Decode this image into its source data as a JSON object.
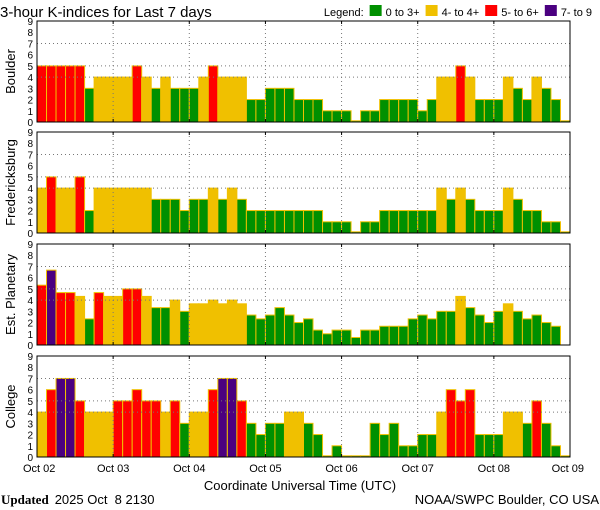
{
  "chart_data": {
    "type": "bar",
    "title": "3-hour K-indices for Last 7 days",
    "legend": {
      "label": "Legend:",
      "placement": "top-right",
      "entries": [
        {
          "label": "0 to 3+",
          "color": "#009000"
        },
        {
          "label": "4- to 4+",
          "color": "#f0c000"
        },
        {
          "label": "5- to 6+",
          "color": "#ff0000"
        },
        {
          "label": "7- to 9",
          "color": "#4b0080"
        }
      ]
    },
    "xlabel": "Coordinate Universal Time (UTC)",
    "x_ticks": [
      "Oct 02",
      "Oct 03",
      "Oct 04",
      "Oct 05",
      "Oct 06",
      "Oct 07",
      "Oct 08",
      "Oct 09"
    ],
    "y_ticks": [
      "0",
      "1",
      "2",
      "3",
      "4",
      "5",
      "6",
      "7",
      "8",
      "9"
    ],
    "ylim": [
      0,
      9
    ],
    "bars_per_day": 8,
    "grid": true,
    "panels": [
      {
        "name": "Boulder",
        "values": [
          5,
          5,
          5,
          5,
          5,
          3,
          4,
          4,
          4,
          4,
          5,
          4,
          3,
          4,
          3,
          3,
          3,
          4,
          5,
          4,
          4,
          4,
          2,
          2,
          3,
          3,
          3,
          2,
          2,
          2,
          1,
          1,
          1,
          0,
          1,
          1,
          2,
          2,
          2,
          2,
          1,
          2,
          4,
          4,
          5,
          4,
          2,
          2,
          2,
          4,
          3,
          2,
          4,
          3,
          2,
          0
        ]
      },
      {
        "name": "Fredericksburg",
        "values": [
          4,
          5,
          4,
          4,
          5,
          2,
          4,
          4,
          4,
          4,
          4,
          4,
          3,
          3,
          3,
          2,
          3,
          3,
          4,
          3,
          4,
          3,
          2,
          2,
          2,
          2,
          2,
          2,
          2,
          2,
          1,
          1,
          1,
          0,
          1,
          1,
          2,
          2,
          2,
          2,
          2,
          2,
          4,
          3,
          4,
          3,
          2,
          2,
          2,
          4,
          3,
          2,
          2,
          1,
          1,
          0
        ]
      },
      {
        "name": "Est. Planetary",
        "values": [
          5.33,
          6.67,
          4.67,
          4.67,
          4.33,
          2.33,
          4.67,
          4.33,
          4.33,
          5,
          5,
          4.33,
          3.33,
          3.33,
          4,
          3,
          3.67,
          3.67,
          4,
          3.67,
          4,
          3.67,
          2.67,
          2.33,
          2.67,
          3.33,
          2.67,
          2,
          2.33,
          1.33,
          1,
          1.33,
          1.33,
          0.67,
          1.33,
          1.33,
          1.67,
          1.67,
          1.67,
          2.33,
          2.67,
          2.33,
          3,
          3,
          4.33,
          3.33,
          2.67,
          2,
          3,
          3.67,
          3,
          2.33,
          2.67,
          2,
          1.67,
          null
        ]
      },
      {
        "name": "College",
        "values": [
          4,
          6,
          7,
          7,
          5,
          4,
          4,
          4,
          5,
          5,
          6,
          5,
          5,
          4,
          5,
          3,
          4,
          4,
          6,
          7,
          7,
          5,
          3,
          2,
          3,
          3,
          4,
          4,
          3,
          2,
          0,
          1,
          0,
          0,
          0,
          3,
          2,
          3,
          1,
          1,
          2,
          2,
          4,
          6,
          5,
          6,
          2,
          2,
          2,
          4,
          4,
          3,
          5,
          3,
          1,
          0
        ]
      }
    ]
  },
  "footer": {
    "updated_label": "Updated",
    "updated_value": "2025 Oct  8 2130",
    "credit": "NOAA/SWPC Boulder, CO USA"
  }
}
